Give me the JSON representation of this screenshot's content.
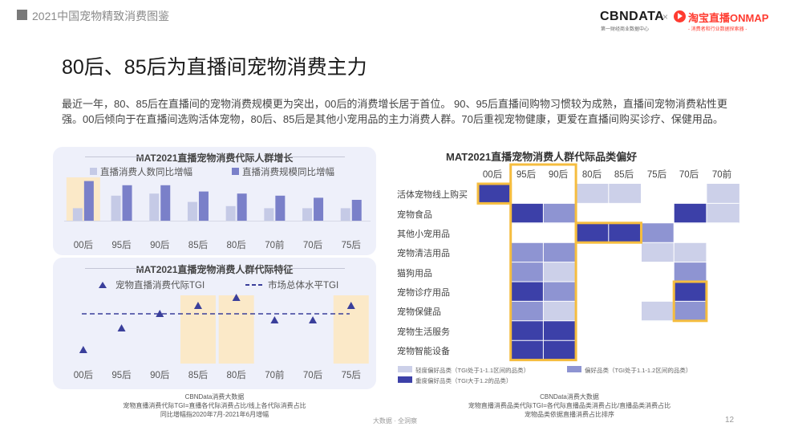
{
  "header": {
    "title": "2021中国宠物精致消费图鉴"
  },
  "logos": {
    "cbn": "CBNDATA",
    "cbn_sub": "第一财经商业数据中心",
    "times": "×",
    "taobao": "淘宝直播ONMAP",
    "taobao_sub": "- 消费者和行业数据探索器 -"
  },
  "title": "80后、85后为直播间宠物消费主力",
  "intro": "最近一年，80、85后在直播间的宠物消费规模更为突出，00后的消费增长居于首位。 90、95后直播间购物习惯较为成熟，直播间宠物消费粘性更强。00后倾向于在直播间选购活体宠物，80后、85后是其他小宠用品的主力消费人群。70后重视宠物健康，更爱在直播间购买诊疗、保健用品。",
  "growth_chart": {
    "title": "MAT2021直播宠物消费代际人群增长",
    "legend": [
      "直播消费人数同比增幅",
      "直播消费规模同比增幅"
    ],
    "colors": [
      "#c5cae6",
      "#7a80c9"
    ],
    "highlight_color": "#fbe9c8"
  },
  "tgi_chart": {
    "title": "MAT2021直播宠物消费人群代际特征",
    "legend_marker": "宠物直播消费代际TGI",
    "legend_line": "市场总体水平TGI",
    "color": "#3a3f9b"
  },
  "heatmap": {
    "title": "MAT2021直播宠物消费人群代际品类偏好",
    "columns": [
      "00后",
      "95后",
      "90后",
      "80后",
      "85后",
      "75后",
      "70后",
      "70前"
    ],
    "rows": [
      "活体宠物线上购买",
      "宠物食品",
      "其他小宠用品",
      "宠物清洁用品",
      "猫狗用品",
      "宠物诊疗用品",
      "宠物保健品",
      "宠物生活服务",
      "宠物智能设备"
    ],
    "colors": {
      "light": "#ccd0e9",
      "mid": "#8e94d2",
      "dark": "#3c40a8",
      "highlight": "#f5bd3f"
    },
    "legend": [
      "轻度偏好品类（TGI处于1-1.1区间的品类）",
      "偏好品类（TGI处于1.1-1.2区间的品类）",
      "重度偏好品类（TGI大于1.2的品类）"
    ]
  },
  "chart_data": [
    {
      "type": "bar",
      "title": "MAT2021直播宠物消费代际人群增长",
      "categories": [
        "00后",
        "95后",
        "90后",
        "85后",
        "80后",
        "70前",
        "70后",
        "75后"
      ],
      "series": [
        {
          "name": "直播消费人数同比增幅",
          "values": [
            0.3,
            0.6,
            0.65,
            0.45,
            0.35,
            0.3,
            0.3,
            0.3
          ]
        },
        {
          "name": "直播消费规模同比增幅",
          "values": [
            0.95,
            0.85,
            0.85,
            0.7,
            0.65,
            0.6,
            0.55,
            0.5
          ]
        }
      ],
      "highlight": [
        "00后"
      ]
    },
    {
      "type": "scatter",
      "title": "MAT2021直播宠物消费人群代际特征",
      "categories": [
        "00后",
        "95后",
        "90后",
        "85后",
        "80后",
        "70前",
        "70后",
        "75后"
      ],
      "series": [
        {
          "name": "宠物直播消费代际TGI",
          "values": [
            0.55,
            0.82,
            1.0,
            1.1,
            1.2,
            0.92,
            0.92,
            1.1
          ]
        },
        {
          "name": "市场总体水平TGI",
          "values": [
            1,
            1,
            1,
            1,
            1,
            1,
            1,
            1
          ]
        }
      ],
      "highlight": [
        "85后",
        "80后",
        "75后"
      ]
    },
    {
      "type": "heatmap",
      "title": "MAT2021直播宠物消费人群代际品类偏好",
      "x": [
        "00后",
        "95后",
        "90后",
        "80后",
        "85后",
        "75后",
        "70后",
        "70前"
      ],
      "y": [
        "活体宠物线上购买",
        "宠物食品",
        "其他小宠用品",
        "宠物清洁用品",
        "猫狗用品",
        "宠物诊疗用品",
        "宠物保健品",
        "宠物生活服务",
        "宠物智能设备"
      ],
      "levels": [
        [
          3,
          0,
          0,
          1,
          1,
          0,
          0,
          1
        ],
        [
          0,
          3,
          2,
          0,
          0,
          0,
          3,
          1
        ],
        [
          0,
          0,
          0,
          3,
          3,
          2,
          0,
          0
        ],
        [
          0,
          2,
          2,
          0,
          0,
          1,
          1,
          0
        ],
        [
          0,
          2,
          1,
          0,
          0,
          0,
          2,
          0
        ],
        [
          0,
          3,
          2,
          0,
          0,
          0,
          3,
          0
        ],
        [
          0,
          2,
          1,
          0,
          0,
          1,
          2,
          0
        ],
        [
          0,
          3,
          3,
          0,
          0,
          0,
          0,
          0
        ],
        [
          0,
          3,
          3,
          0,
          0,
          0,
          0,
          0
        ]
      ],
      "highlights": [
        "00后:活体宠物线上购买",
        "95后-90后",
        "80后-85后:其他小宠用品",
        "70后:宠物诊疗用品-宠物保健品"
      ]
    }
  ],
  "notes": {
    "left": [
      "CBNData消费大数据",
      "宠物直播消费代际TGI=直播各代际消费占比/线上各代际消费占比",
      "同比增幅指2020年7月-2021年6月增幅"
    ],
    "right": [
      "CBNData消费大数据",
      "宠物直播消费品类代际TGI=各代际直播品类消费占比/直播品类消费占比",
      "宠物品类依据直播消费占比排序"
    ]
  },
  "footer": {
    "center": "大数据 · 全洞察",
    "page": "12"
  }
}
